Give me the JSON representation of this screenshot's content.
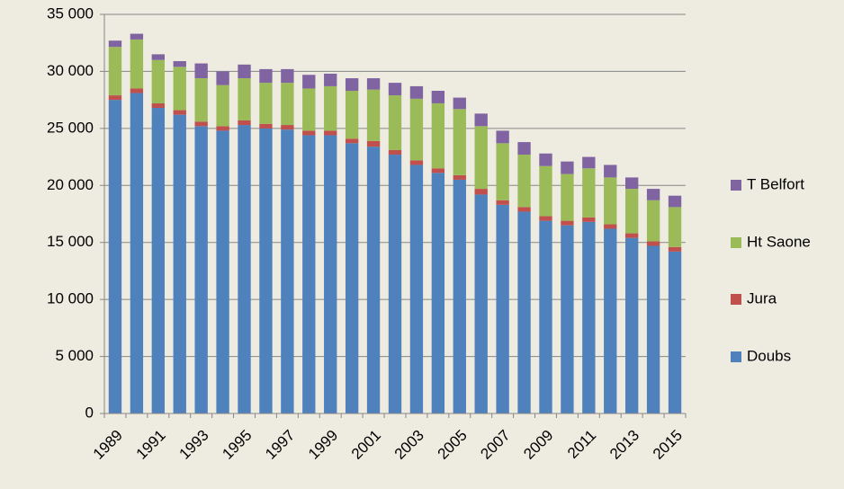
{
  "chart_data": {
    "type": "bar",
    "stacked": true,
    "categories": [
      "1989",
      null,
      "1991",
      null,
      "1993",
      null,
      "1995",
      null,
      "1997",
      null,
      "1999",
      null,
      "2001",
      null,
      "2003",
      null,
      "2005",
      null,
      "2007",
      null,
      "2009",
      null,
      "2011",
      null,
      "2013",
      null,
      "2015"
    ],
    "series": [
      {
        "name": "Doubs",
        "color": "#4f81bd",
        "values": [
          27500,
          28100,
          26800,
          26200,
          25200,
          24800,
          25300,
          25000,
          24900,
          24400,
          24400,
          23700,
          23400,
          22700,
          21800,
          21100,
          20500,
          19200,
          18300,
          17700,
          16900,
          16500,
          16800,
          16200,
          15400,
          14700,
          14200
        ]
      },
      {
        "name": "Jura",
        "color": "#c0504d",
        "values": [
          400,
          400,
          400,
          400,
          400,
          400,
          400,
          400,
          400,
          400,
          400,
          400,
          500,
          400,
          400,
          400,
          400,
          500,
          400,
          400,
          400,
          400,
          400,
          400,
          400,
          400,
          400
        ]
      },
      {
        "name": "Ht Saone",
        "color": "#9bbb59",
        "values": [
          4250,
          4300,
          3800,
          3800,
          3800,
          3600,
          3700,
          3600,
          3700,
          3700,
          3900,
          4200,
          4500,
          4800,
          5400,
          5700,
          5800,
          5500,
          5000,
          4600,
          4400,
          4100,
          4300,
          4100,
          3900,
          3600,
          3500
        ]
      },
      {
        "name": "T Belfort",
        "color": "#8064a2",
        "values": [
          550,
          500,
          500,
          500,
          1300,
          1200,
          1200,
          1200,
          1200,
          1200,
          1100,
          1100,
          1000,
          1100,
          1100,
          1100,
          1000,
          1100,
          1100,
          1100,
          1100,
          1100,
          1000,
          1100,
          1000,
          1000,
          1000
        ]
      }
    ],
    "ylim": [
      0,
      35000
    ],
    "yticks": [
      0,
      {
        "value": 5000,
        "label": "5 000"
      },
      {
        "value": 10000,
        "label": "10 000"
      },
      {
        "value": 15000,
        "label": "15 000"
      },
      {
        "value": 20000,
        "label": "20 000"
      },
      {
        "value": 25000,
        "label": "25 000"
      },
      {
        "value": 30000,
        "label": "30 000"
      },
      {
        "value": 35000,
        "label": "35 000"
      }
    ],
    "grid": true,
    "legend": "right"
  }
}
